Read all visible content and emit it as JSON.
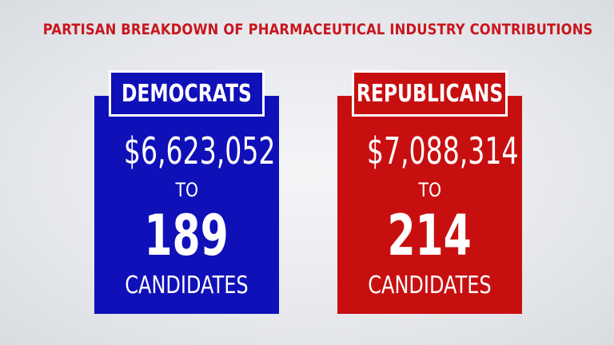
{
  "title": "PARTISAN BREAKDOWN OF PHARMACEUTICAL INDUSTRY CONTRIBUTIONS",
  "colors": {
    "title": "#c8161d",
    "democrat": "#1010b8",
    "republican": "#c80f10"
  },
  "panels": [
    {
      "party": "DEMOCRATS",
      "amount": "$6,623,052",
      "to": "TO",
      "count": "189",
      "unit": "CANDIDATES"
    },
    {
      "party": "REPUBLICANS",
      "amount": "$7,088,314",
      "to": "TO",
      "count": "214",
      "unit": "CANDIDATES"
    }
  ]
}
